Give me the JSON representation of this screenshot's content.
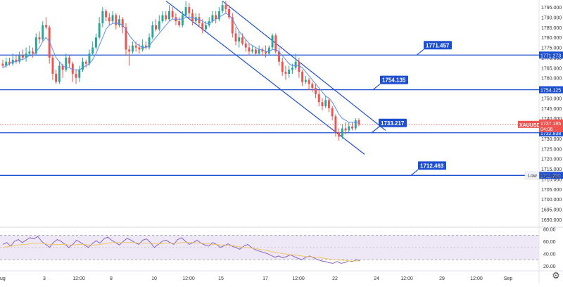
{
  "chart_data": {
    "type": "candlestick",
    "symbol": "XAUUSD",
    "price_label": "1737.195",
    "countdown": "04:06",
    "y_ticks": [
      "1795.000",
      "1790.000",
      "1785.000",
      "1780.000",
      "1775.000",
      "1770.000",
      "1765.000",
      "1760.000",
      "1755.000",
      "1750.000",
      "1745.000",
      "1740.000",
      "1735.000",
      "1730.000",
      "1725.000",
      "1720.000",
      "1715.000",
      "1710.000",
      "1705.000",
      "1700.000",
      "1695.000",
      "1690.000"
    ],
    "y_range": [
      1686.5,
      1798.5
    ],
    "x_ticks": [
      "ug",
      "3",
      "12:00",
      "8",
      "10",
      "12:00",
      "15",
      "17",
      "12:00",
      "22",
      "24",
      "12:00",
      "29",
      "12:00",
      "Sep"
    ],
    "horizontal_levels": [
      {
        "name": "1771.457",
        "axis_label": "1771.273",
        "value": 1771.27
      },
      {
        "name": "1754.135",
        "axis_label": "1754.125",
        "value": 1754.13
      },
      {
        "name": "1733.217",
        "axis_label": "1732.838",
        "value": 1732.84
      },
      {
        "name": "1712.463",
        "axis_label": "1711.780",
        "value": 1711.78
      }
    ],
    "low_marker": {
      "label": "Low",
      "value": "1711.560"
    },
    "channel": {
      "upper": [
        [
          316,
          1798
        ],
        [
          548,
          1734
        ]
      ],
      "lower": [
        [
          236,
          1798
        ],
        [
          518,
          1722.2
        ]
      ]
    },
    "candles": [
      [
        1767,
        1766,
        1769,
        1765
      ],
      [
        1766,
        1768,
        1770,
        1765
      ],
      [
        1768,
        1767,
        1770,
        1766
      ],
      [
        1767,
        1769,
        1772,
        1766
      ],
      [
        1769,
        1768,
        1771,
        1767
      ],
      [
        1768,
        1771,
        1773,
        1767
      ],
      [
        1771,
        1770,
        1774,
        1769
      ],
      [
        1770,
        1772,
        1775,
        1768
      ],
      [
        1772,
        1773,
        1776,
        1771
      ],
      [
        1773,
        1772,
        1775,
        1770
      ],
      [
        1772,
        1780,
        1782,
        1771
      ],
      [
        1780,
        1779,
        1783,
        1777
      ],
      [
        1779,
        1786,
        1788,
        1778
      ],
      [
        1786,
        1785,
        1790,
        1784
      ],
      [
        1785,
        1770,
        1786,
        1767
      ],
      [
        1770,
        1762,
        1771,
        1759
      ],
      [
        1762,
        1758,
        1764,
        1757
      ],
      [
        1758,
        1766,
        1768,
        1757
      ],
      [
        1766,
        1764,
        1767,
        1760
      ],
      [
        1764,
        1770,
        1772,
        1763
      ],
      [
        1770,
        1767,
        1771,
        1765
      ],
      [
        1767,
        1762,
        1768,
        1758
      ],
      [
        1762,
        1760,
        1764,
        1757
      ],
      [
        1760,
        1764,
        1766,
        1758
      ],
      [
        1764,
        1768,
        1770,
        1763
      ],
      [
        1768,
        1767,
        1769,
        1765
      ],
      [
        1767,
        1772,
        1774,
        1766
      ],
      [
        1772,
        1775,
        1778,
        1771
      ],
      [
        1775,
        1780,
        1782,
        1774
      ],
      [
        1780,
        1787,
        1790,
        1779
      ],
      [
        1787,
        1793,
        1795,
        1785
      ],
      [
        1793,
        1790,
        1794,
        1788
      ],
      [
        1790,
        1788,
        1792,
        1786
      ],
      [
        1788,
        1791,
        1793,
        1787
      ],
      [
        1791,
        1786,
        1792,
        1784
      ],
      [
        1786,
        1789,
        1791,
        1785
      ],
      [
        1789,
        1785,
        1790,
        1782
      ],
      [
        1785,
        1774,
        1787,
        1771
      ],
      [
        1774,
        1773,
        1776,
        1766
      ],
      [
        1773,
        1776,
        1778,
        1772
      ],
      [
        1776,
        1775,
        1778,
        1773
      ],
      [
        1775,
        1774,
        1777,
        1772
      ],
      [
        1774,
        1776,
        1779,
        1773
      ],
      [
        1776,
        1775,
        1778,
        1774
      ],
      [
        1775,
        1780,
        1782,
        1774
      ],
      [
        1780,
        1786,
        1788,
        1779
      ],
      [
        1786,
        1784,
        1789,
        1783
      ],
      [
        1784,
        1788,
        1791,
        1783
      ],
      [
        1788,
        1791,
        1793,
        1787
      ],
      [
        1791,
        1789,
        1793,
        1788
      ],
      [
        1789,
        1793,
        1796,
        1788
      ],
      [
        1793,
        1790,
        1795,
        1789
      ],
      [
        1790,
        1788,
        1792,
        1786
      ],
      [
        1788,
        1786,
        1790,
        1785
      ],
      [
        1786,
        1791,
        1793,
        1785
      ],
      [
        1791,
        1795,
        1798,
        1790
      ],
      [
        1795,
        1792,
        1797,
        1790
      ],
      [
        1792,
        1788,
        1794,
        1786
      ],
      [
        1788,
        1790,
        1792,
        1787
      ],
      [
        1790,
        1787,
        1792,
        1785
      ],
      [
        1787,
        1784,
        1789,
        1782
      ],
      [
        1784,
        1786,
        1788,
        1783
      ],
      [
        1786,
        1788,
        1790,
        1785
      ],
      [
        1788,
        1791,
        1793,
        1787
      ],
      [
        1791,
        1789,
        1793,
        1787
      ],
      [
        1789,
        1793,
        1795,
        1788
      ],
      [
        1793,
        1796,
        1798,
        1792
      ],
      [
        1796,
        1794,
        1798,
        1792
      ],
      [
        1794,
        1790,
        1796,
        1789
      ],
      [
        1790,
        1782,
        1792,
        1780
      ],
      [
        1782,
        1778,
        1785,
        1776
      ],
      [
        1778,
        1780,
        1783,
        1775
      ],
      [
        1780,
        1777,
        1782,
        1776
      ],
      [
        1777,
        1775,
        1779,
        1773
      ],
      [
        1775,
        1773,
        1777,
        1771
      ],
      [
        1773,
        1774,
        1776,
        1772
      ],
      [
        1774,
        1772,
        1775,
        1771
      ],
      [
        1772,
        1774,
        1776,
        1771
      ],
      [
        1774,
        1773,
        1775,
        1771
      ],
      [
        1773,
        1772,
        1776,
        1770
      ],
      [
        1772,
        1775,
        1776,
        1771
      ],
      [
        1775,
        1781,
        1782,
        1774
      ],
      [
        1781,
        1773,
        1782,
        1772
      ],
      [
        1773,
        1768,
        1775,
        1766
      ],
      [
        1768,
        1763,
        1770,
        1761
      ],
      [
        1763,
        1762,
        1766,
        1759
      ],
      [
        1762,
        1764,
        1766,
        1760
      ],
      [
        1764,
        1765,
        1767,
        1762
      ],
      [
        1765,
        1768,
        1772,
        1764
      ],
      [
        1768,
        1763,
        1770,
        1760
      ],
      [
        1763,
        1758,
        1764,
        1756
      ],
      [
        1758,
        1759,
        1761,
        1757
      ],
      [
        1759,
        1757,
        1760,
        1754
      ],
      [
        1757,
        1755,
        1758,
        1753
      ],
      [
        1755,
        1752,
        1757,
        1750
      ],
      [
        1752,
        1748,
        1754,
        1746
      ],
      [
        1748,
        1746,
        1750,
        1744
      ],
      [
        1746,
        1749,
        1751,
        1745
      ],
      [
        1749,
        1745,
        1750,
        1743
      ],
      [
        1745,
        1741,
        1746,
        1739
      ],
      [
        1741,
        1733,
        1742,
        1731
      ],
      [
        1733,
        1731,
        1735,
        1729
      ],
      [
        1731,
        1735,
        1737,
        1730
      ],
      [
        1735,
        1734,
        1738,
        1732
      ],
      [
        1734,
        1736,
        1738,
        1733
      ],
      [
        1736,
        1735,
        1738,
        1734
      ],
      [
        1735,
        1739,
        1740,
        1734
      ],
      [
        1739,
        1737,
        1740,
        1736
      ]
    ],
    "ma": [
      1765,
      1766,
      1767,
      1768,
      1768,
      1769,
      1769,
      1770,
      1771,
      1771,
      1773,
      1775,
      1778,
      1780,
      1778,
      1774,
      1770,
      1768,
      1766,
      1765,
      1765,
      1764,
      1764,
      1764,
      1765,
      1766,
      1767,
      1769,
      1772,
      1776,
      1780,
      1784,
      1786,
      1787,
      1787,
      1787,
      1786,
      1784,
      1781,
      1779,
      1777,
      1776,
      1775,
      1775,
      1776,
      1778,
      1780,
      1782,
      1784,
      1786,
      1788,
      1789,
      1789,
      1789,
      1789,
      1790,
      1790,
      1790,
      1789,
      1789,
      1788,
      1787,
      1787,
      1788,
      1789,
      1790,
      1791,
      1792,
      1791,
      1789,
      1786,
      1783,
      1781,
      1779,
      1777,
      1776,
      1775,
      1774,
      1774,
      1773,
      1773,
      1774,
      1774,
      1773,
      1771,
      1769,
      1767,
      1766,
      1766,
      1766,
      1765,
      1763,
      1761,
      1759,
      1757,
      1755,
      1753,
      1751,
      1750,
      1748,
      1745,
      1742,
      1740,
      1739,
      1738,
      1738,
      1738,
      1738
    ],
    "rsi": {
      "ticks": [
        "80.00",
        "60.00",
        "40.00",
        "20.00"
      ],
      "range": [
        14,
        82
      ],
      "overbought": 70,
      "oversold": 30,
      "values": [
        55,
        58,
        52,
        60,
        63,
        58,
        62,
        66,
        64,
        68,
        60,
        55,
        50,
        58,
        63,
        60,
        55,
        50,
        55,
        62,
        58,
        54,
        50,
        56,
        61,
        57,
        64,
        67,
        62,
        58,
        54,
        60,
        65,
        62,
        58,
        55,
        62,
        64,
        58,
        50,
        55,
        60,
        62,
        58,
        55,
        63,
        66,
        60,
        55,
        58,
        62,
        57,
        54,
        52,
        58,
        55,
        50,
        53,
        56,
        52,
        50,
        47,
        52,
        55,
        50,
        46,
        44,
        42,
        40,
        37,
        34,
        36,
        33,
        35,
        38,
        35,
        32,
        30,
        34,
        36,
        33,
        30,
        28,
        27,
        25,
        24,
        27,
        24,
        25,
        28,
        27,
        30,
        28
      ],
      "ma": [
        50,
        51,
        52,
        53,
        54,
        55,
        55,
        56,
        57,
        57,
        57,
        56,
        55,
        55,
        55,
        55,
        55,
        54,
        54,
        55,
        55,
        55,
        54,
        54,
        54,
        55,
        56,
        57,
        58,
        58,
        58,
        58,
        58,
        58,
        58,
        57,
        57,
        57,
        57,
        56,
        56,
        56,
        57,
        57,
        57,
        57,
        58,
        58,
        58,
        58,
        57,
        57,
        56,
        56,
        55,
        55,
        54,
        54,
        53,
        53,
        52,
        51,
        50,
        50,
        49,
        48,
        47,
        46,
        45,
        43,
        42,
        41,
        40,
        39,
        38,
        38,
        37,
        36,
        35,
        35,
        34,
        34,
        33,
        32,
        31,
        30,
        30,
        29,
        29,
        28,
        28,
        28,
        28
      ]
    },
    "colors": {
      "up": "#26a69a",
      "down": "#ef5350",
      "level": "#1e4fd1",
      "ma": "#5b8def",
      "rsi": "#7e57c2",
      "rsi_ma": "#f0c35a",
      "band": "#ede7f6"
    }
  }
}
